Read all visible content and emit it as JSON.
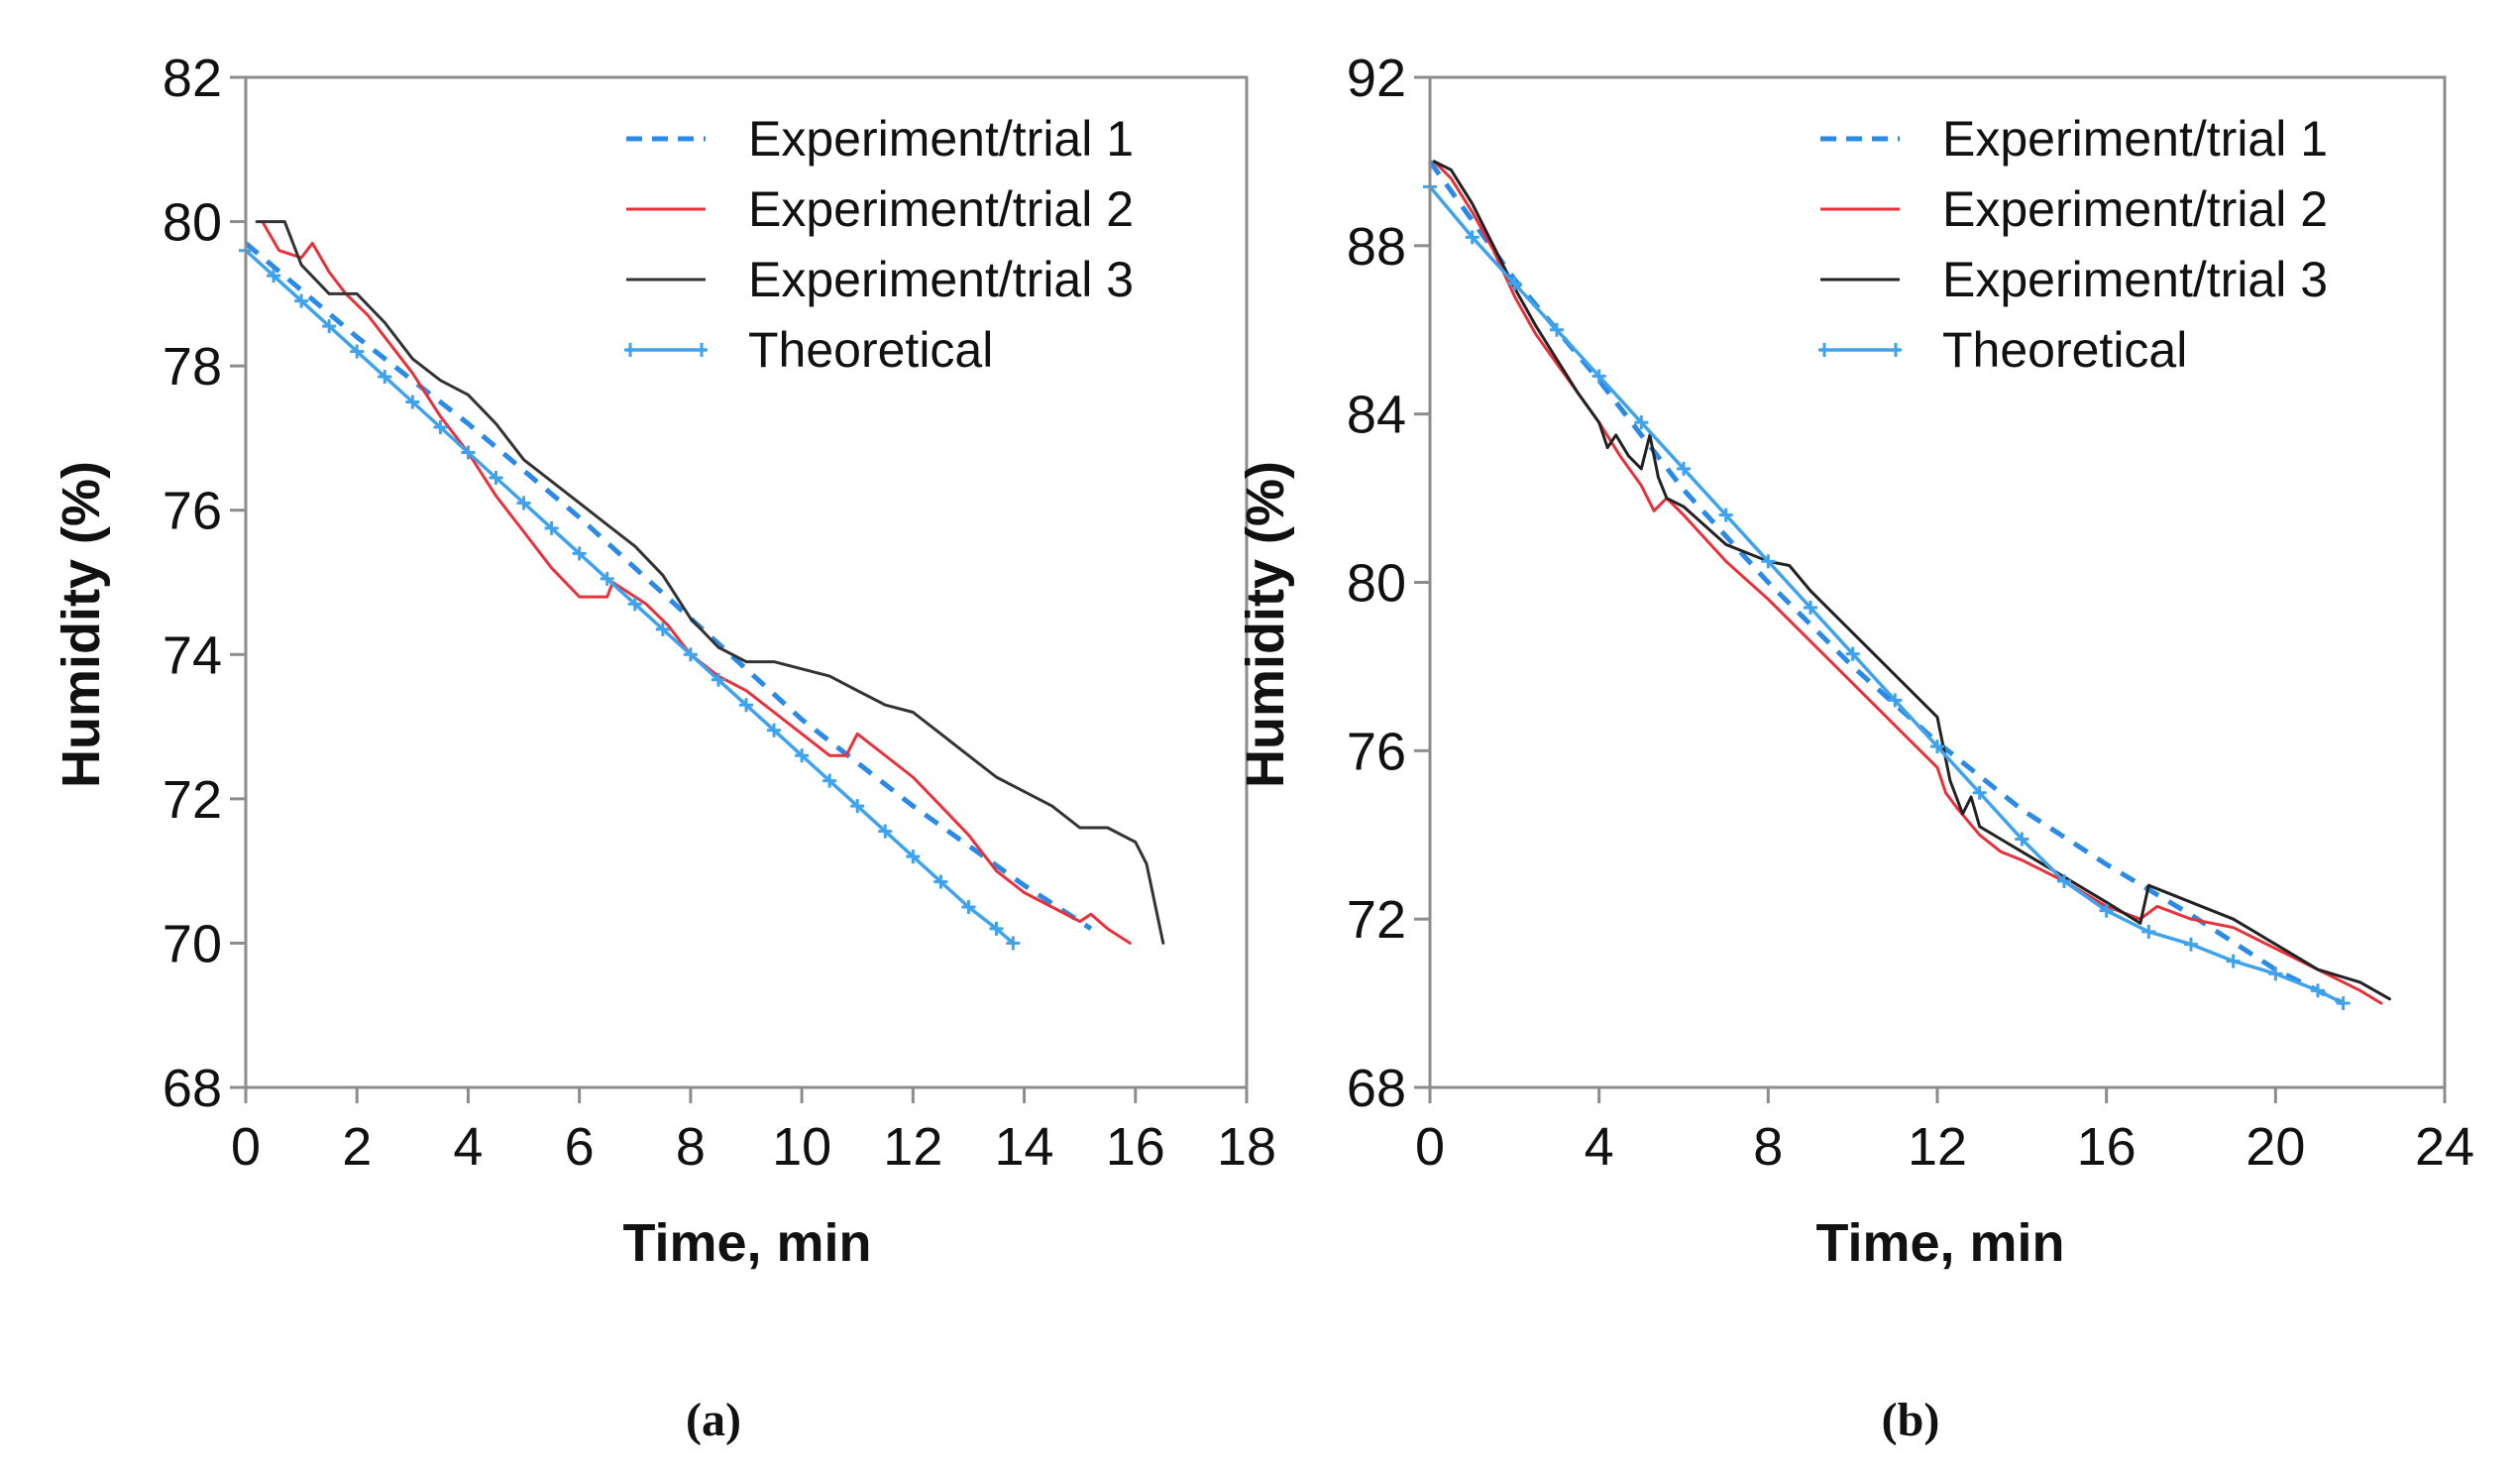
{
  "chart_data": [
    {
      "type": "line",
      "panel_label": "(a)",
      "xlabel": "Time, min",
      "ylabel": "Humidity (%)",
      "xlim": [
        0,
        18
      ],
      "ylim": [
        68,
        82
      ],
      "xticks": [
        0,
        2,
        4,
        6,
        8,
        10,
        12,
        14,
        16,
        18
      ],
      "yticks": [
        68,
        70,
        72,
        74,
        76,
        78,
        80,
        82
      ],
      "legend_position": "top-right",
      "grid": false,
      "series": [
        {
          "name": "Experiment/trial 1",
          "color": "#2b8ae6",
          "style": "dashed",
          "x": [
            0,
            2,
            4,
            6,
            8,
            10,
            12,
            14,
            15.2
          ],
          "y": [
            79.7,
            78.4,
            77.2,
            75.9,
            74.5,
            73.1,
            71.9,
            70.8,
            70.2
          ]
        },
        {
          "name": "Experiment/trial 2",
          "color": "#e8313a",
          "style": "solid",
          "x": [
            0.3,
            0.6,
            1.0,
            1.2,
            1.5,
            1.8,
            2.2,
            2.6,
            3.0,
            3.5,
            4.0,
            4.5,
            5.0,
            5.5,
            6.0,
            6.5,
            6.6,
            6.8,
            7.2,
            7.6,
            8.0,
            8.5,
            9.0,
            9.5,
            10.0,
            10.5,
            10.8,
            11.0,
            11.5,
            12.0,
            12.5,
            13.0,
            13.5,
            14.0,
            14.5,
            15.0,
            15.2,
            15.5,
            15.9
          ],
          "y": [
            80.0,
            79.6,
            79.5,
            79.7,
            79.3,
            79.0,
            78.7,
            78.3,
            77.9,
            77.3,
            76.8,
            76.2,
            75.7,
            75.2,
            74.8,
            74.8,
            75.0,
            74.9,
            74.7,
            74.4,
            74.0,
            73.7,
            73.5,
            73.2,
            72.9,
            72.6,
            72.6,
            72.9,
            72.6,
            72.3,
            71.9,
            71.5,
            71.0,
            70.7,
            70.5,
            70.3,
            70.4,
            70.2,
            70.0
          ]
        },
        {
          "name": "Experiment/trial 3",
          "color": "#333333",
          "style": "solid",
          "x": [
            0.2,
            0.7,
            1.0,
            1.5,
            2.0,
            2.5,
            3.0,
            3.5,
            4.0,
            4.5,
            5.0,
            5.5,
            6.0,
            6.5,
            7.0,
            7.5,
            8.0,
            8.5,
            9.0,
            9.5,
            10.0,
            10.5,
            11.0,
            11.5,
            12.0,
            12.5,
            13.0,
            13.5,
            14.0,
            14.5,
            15.0,
            15.5,
            16.0,
            16.2,
            16.5
          ],
          "y": [
            80.0,
            80.0,
            79.4,
            79.0,
            79.0,
            78.6,
            78.1,
            77.8,
            77.6,
            77.2,
            76.7,
            76.4,
            76.1,
            75.8,
            75.5,
            75.1,
            74.5,
            74.1,
            73.9,
            73.9,
            73.8,
            73.7,
            73.5,
            73.3,
            73.2,
            72.9,
            72.6,
            72.3,
            72.1,
            71.9,
            71.6,
            71.6,
            71.4,
            71.1,
            70.0
          ]
        },
        {
          "name": "Theoretical",
          "color": "#3fa2ec",
          "style": "solid-marker",
          "x": [
            0,
            0.5,
            1.0,
            1.5,
            2.0,
            2.5,
            3.0,
            3.5,
            4.0,
            4.5,
            5.0,
            5.5,
            6.0,
            6.5,
            7.0,
            7.5,
            8.0,
            8.5,
            9.0,
            9.5,
            10.0,
            10.5,
            11.0,
            11.5,
            12.0,
            12.5,
            13.0,
            13.5,
            13.8
          ],
          "y": [
            79.6,
            79.25,
            78.9,
            78.55,
            78.2,
            77.85,
            77.5,
            77.15,
            76.8,
            76.45,
            76.1,
            75.75,
            75.4,
            75.05,
            74.7,
            74.35,
            74.0,
            73.65,
            73.3,
            72.95,
            72.6,
            72.25,
            71.9,
            71.55,
            71.2,
            70.85,
            70.5,
            70.2,
            70.0
          ]
        }
      ]
    },
    {
      "type": "line",
      "panel_label": "(b)",
      "xlabel": "Time, min",
      "ylabel": "Humidity (%)",
      "xlim": [
        0,
        24
      ],
      "ylim": [
        68,
        92
      ],
      "xticks": [
        0,
        4,
        8,
        12,
        16,
        20,
        24
      ],
      "yticks": [
        68,
        72,
        76,
        80,
        84,
        88,
        92
      ],
      "legend_position": "top-right",
      "grid": false,
      "series": [
        {
          "name": "Experiment/trial 1",
          "color": "#2b8ae6",
          "style": "dashed",
          "x": [
            0,
            2,
            4,
            6,
            8,
            10,
            12,
            14,
            16,
            18,
            20,
            21.6
          ],
          "y": [
            90.0,
            87.2,
            84.8,
            82.2,
            80.0,
            78.0,
            76.2,
            74.6,
            73.3,
            72.1,
            70.8,
            70.0
          ]
        },
        {
          "name": "Experiment/trial 2",
          "color": "#e8313a",
          "style": "solid",
          "x": [
            0.1,
            0.5,
            1.0,
            1.5,
            2.0,
            2.5,
            3.0,
            3.5,
            4.0,
            4.5,
            5.0,
            5.3,
            5.6,
            6.0,
            7.0,
            8.0,
            9.0,
            10.0,
            11.0,
            12.0,
            12.2,
            12.5,
            13.0,
            13.5,
            14.0,
            15.0,
            16.0,
            16.8,
            17.2,
            18.0,
            19.0,
            20.0,
            21.0,
            22.0,
            22.5
          ],
          "y": [
            90.0,
            89.6,
            88.8,
            87.9,
            86.8,
            85.9,
            85.2,
            84.5,
            83.8,
            83.0,
            82.3,
            81.7,
            82.0,
            81.6,
            80.5,
            79.6,
            78.6,
            77.6,
            76.6,
            75.6,
            75.0,
            74.6,
            74.0,
            73.6,
            73.4,
            72.9,
            72.3,
            72.0,
            72.3,
            72.0,
            71.8,
            71.3,
            70.8,
            70.3,
            70.0
          ]
        },
        {
          "name": "Experiment/trial 3",
          "color": "#222222",
          "style": "solid",
          "x": [
            0.1,
            0.5,
            1.0,
            1.5,
            2.0,
            2.5,
            3.0,
            3.5,
            4.0,
            4.2,
            4.4,
            4.7,
            5.0,
            5.2,
            5.4,
            5.6,
            6.0,
            7.0,
            8.0,
            8.5,
            9.0,
            10.0,
            11.0,
            12.0,
            12.3,
            12.6,
            12.8,
            13.0,
            13.5,
            14.0,
            15.0,
            16.0,
            16.8,
            17.0,
            17.5,
            18.0,
            19.0,
            20.0,
            21.0,
            22.0,
            22.7
          ],
          "y": [
            90.0,
            89.8,
            89.0,
            88.0,
            87.0,
            86.1,
            85.3,
            84.5,
            83.8,
            83.2,
            83.5,
            83.0,
            82.7,
            83.5,
            82.5,
            82.0,
            81.8,
            80.9,
            80.5,
            80.4,
            79.8,
            78.8,
            77.8,
            76.8,
            75.3,
            74.5,
            74.9,
            74.2,
            73.9,
            73.6,
            73.0,
            72.4,
            71.9,
            72.8,
            72.6,
            72.4,
            72.0,
            71.4,
            70.8,
            70.5,
            70.1
          ]
        },
        {
          "name": "Theoretical",
          "color": "#3fa2ec",
          "style": "solid-marker",
          "x": [
            0,
            1,
            2,
            3,
            4,
            5,
            6,
            7,
            8,
            9,
            10,
            11,
            12,
            13,
            14,
            15,
            16,
            17,
            18,
            19,
            20,
            21,
            21.6
          ],
          "y": [
            89.4,
            88.2,
            87.1,
            86.0,
            84.9,
            83.8,
            82.7,
            81.6,
            80.5,
            79.4,
            78.3,
            77.2,
            76.1,
            75.0,
            73.9,
            72.9,
            72.2,
            71.7,
            71.4,
            71.0,
            70.7,
            70.3,
            70.0
          ]
        }
      ]
    }
  ]
}
